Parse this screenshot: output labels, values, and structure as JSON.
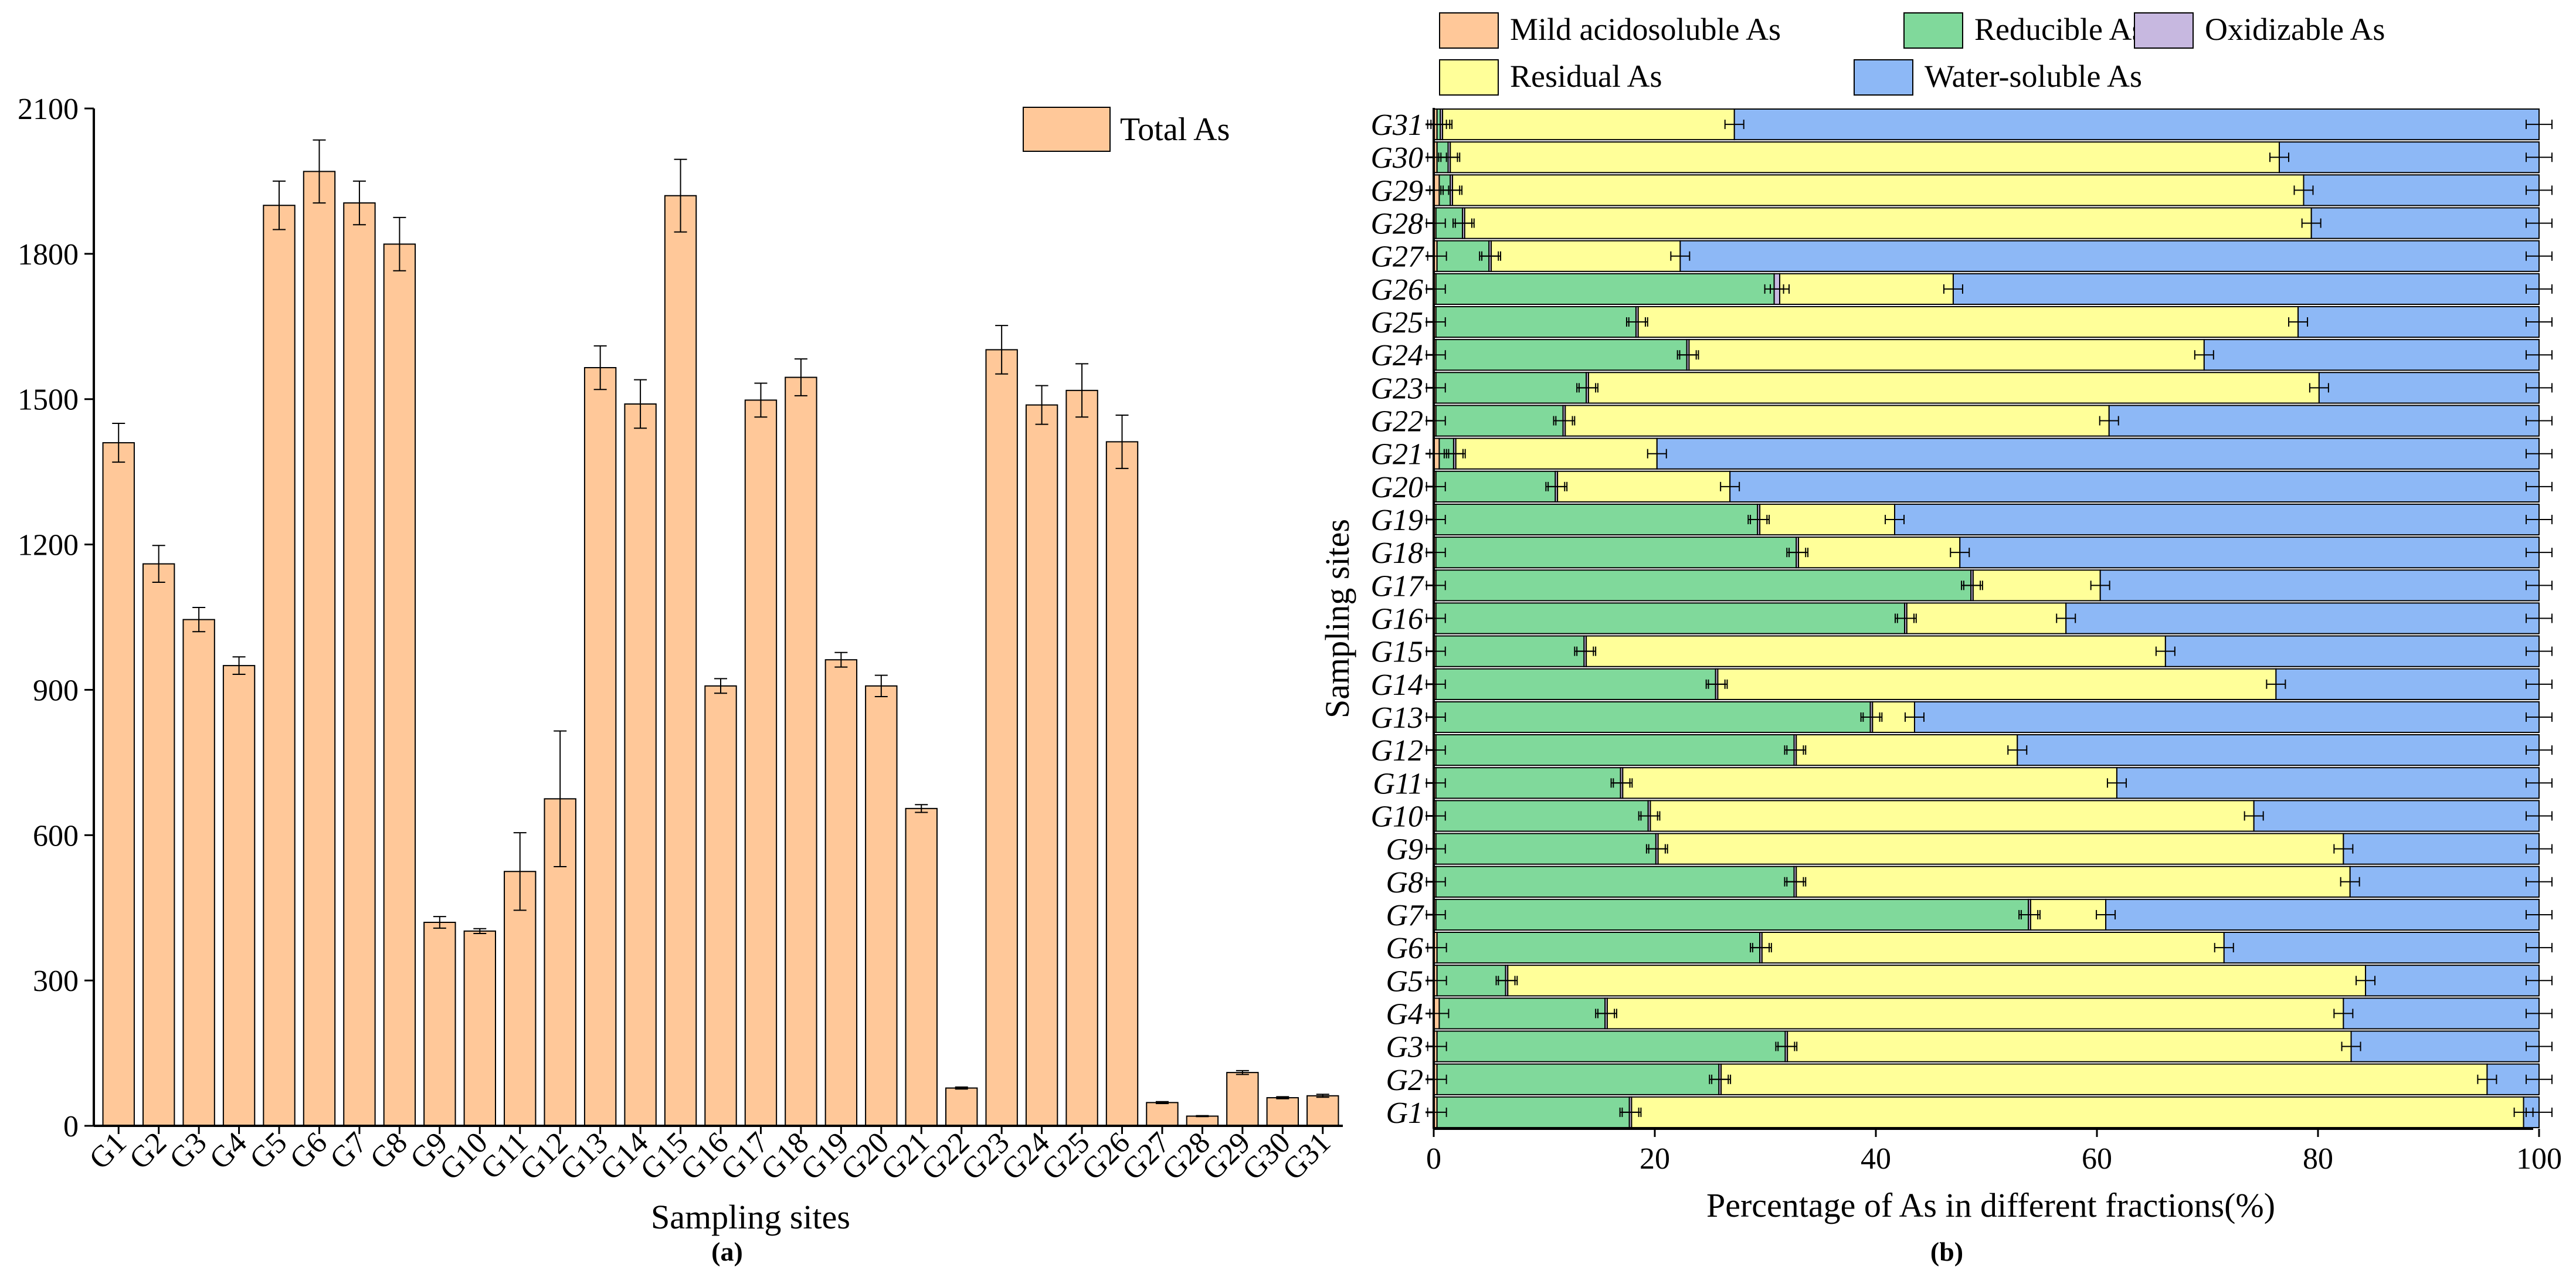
{
  "chart_data": [
    {
      "type": "bar",
      "panel_label": "(a)",
      "title": "",
      "xlabel": "Sampling sites",
      "ylabel": "",
      "ylim": [
        0,
        2100
      ],
      "yticks": [
        0,
        300,
        600,
        900,
        1200,
        1500,
        1800,
        2100
      ],
      "categories": [
        "G1",
        "G2",
        "G3",
        "G4",
        "G5",
        "G6",
        "G7",
        "G8",
        "G9",
        "G10",
        "G11",
        "G12",
        "G13",
        "G14",
        "G15",
        "G16",
        "G17",
        "G18",
        "G19",
        "G20",
        "G21",
        "G22",
        "G23",
        "G24",
        "G25",
        "G26",
        "G27",
        "G28",
        "G29",
        "G30",
        "G31"
      ],
      "series": [
        {
          "name": "Total As",
          "color": "#FFC899",
          "values": [
            1410,
            1160,
            1045,
            950,
            1900,
            1970,
            1905,
            1820,
            420,
            402,
            525,
            675,
            1565,
            1490,
            1920,
            908,
            1498,
            1545,
            962,
            908,
            655,
            78,
            1602,
            1488,
            1518,
            1412,
            48,
            20,
            110,
            58,
            62
          ],
          "errors": [
            40,
            38,
            25,
            18,
            50,
            65,
            45,
            55,
            12,
            5,
            80,
            140,
            45,
            50,
            75,
            15,
            35,
            38,
            15,
            22,
            8,
            2,
            50,
            40,
            55,
            55,
            2,
            1,
            4,
            2,
            3
          ]
        }
      ],
      "legend": {
        "position": "top-right",
        "entries": [
          "Total As"
        ]
      }
    },
    {
      "type": "bar",
      "orientation": "horizontal",
      "stacked": true,
      "panel_label": "(b)",
      "title": "",
      "xlabel": "Percentage of As in different fractions(%)",
      "ylabel": "Sampling sites",
      "xlim": [
        0,
        100
      ],
      "xticks": [
        0,
        20,
        40,
        60,
        80,
        100
      ],
      "categories": [
        "G1",
        "G2",
        "G3",
        "G4",
        "G5",
        "G6",
        "G7",
        "G8",
        "G9",
        "G10",
        "G11",
        "G12",
        "G13",
        "G14",
        "G15",
        "G16",
        "G17",
        "G18",
        "G19",
        "G20",
        "G21",
        "G22",
        "G23",
        "G24",
        "G25",
        "G26",
        "G27",
        "G28",
        "G29",
        "G30",
        "G31"
      ],
      "series": [
        {
          "name": "Mild acidosoluble As",
          "color": "#FFC899",
          "values": [
            0.3,
            0.3,
            0.3,
            0.5,
            0.3,
            0.3,
            0.2,
            0.2,
            0.2,
            0.2,
            0.2,
            0.2,
            0.2,
            0.2,
            0.2,
            0.2,
            0.2,
            0.2,
            0.2,
            0.2,
            0.5,
            0.2,
            0.2,
            0.2,
            0.2,
            0.2,
            0.3,
            0.2,
            0.5,
            0.3,
            0.3
          ]
        },
        {
          "name": "Reducible As",
          "color": "#80D99B",
          "values": [
            17.4,
            25.5,
            31.5,
            15.0,
            6.2,
            29.2,
            53.6,
            32.4,
            19.9,
            19.2,
            16.7,
            32.4,
            39.3,
            25.3,
            13.4,
            42.4,
            48.4,
            32.6,
            29.1,
            10.8,
            1.3,
            11.5,
            13.6,
            22.7,
            18.1,
            30.6,
            4.7,
            2.4,
            1.0,
            1.0,
            0.3
          ]
        },
        {
          "name": "Oxidizable As",
          "color": "#C7B8E0",
          "values": [
            0.2,
            0.2,
            0.2,
            0.2,
            0.2,
            0.2,
            0.2,
            0.2,
            0.2,
            0.2,
            0.2,
            0.2,
            0.2,
            0.2,
            0.2,
            0.2,
            0.2,
            0.2,
            0.2,
            0.2,
            0.2,
            0.2,
            0.2,
            0.2,
            0.2,
            0.5,
            0.2,
            0.2,
            0.2,
            0.2,
            0.2
          ]
        },
        {
          "name": "Residual As",
          "color": "#FFFF99",
          "values": [
            80.7,
            69.3,
            51.0,
            66.6,
            77.6,
            41.8,
            6.8,
            50.1,
            62.0,
            54.6,
            44.7,
            20.0,
            3.8,
            50.5,
            52.4,
            14.4,
            11.5,
            14.6,
            12.2,
            15.6,
            18.2,
            49.2,
            66.1,
            46.6,
            59.7,
            15.7,
            17.1,
            76.6,
            77.0,
            75.0,
            26.4
          ]
        },
        {
          "name": "Water-soluble As",
          "color": "#8DB8F6",
          "values": [
            1.4,
            4.7,
            17.0,
            17.7,
            15.7,
            28.5,
            39.2,
            17.1,
            17.7,
            25.8,
            38.2,
            47.2,
            56.5,
            23.8,
            33.8,
            42.8,
            39.7,
            52.4,
            58.3,
            73.2,
            79.8,
            38.9,
            19.9,
            30.3,
            21.8,
            53.0,
            77.7,
            20.6,
            21.3,
            23.5,
            72.8
          ]
        }
      ],
      "legend": {
        "position": "top",
        "entries": [
          "Mild acidosoluble As",
          "Reducible As",
          "Oxidizable As",
          "Residual As",
          "Water-soluble As"
        ]
      }
    }
  ]
}
